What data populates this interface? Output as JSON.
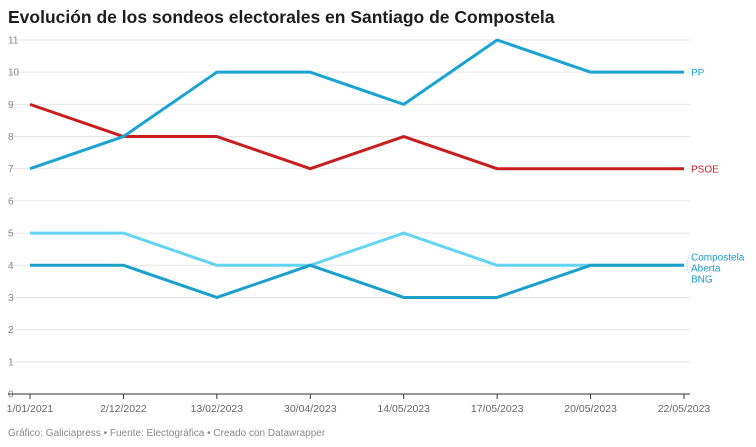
{
  "chart_data": {
    "type": "line",
    "title": "Evolución de los sondeos electorales en Santiago de Compostela",
    "categories": [
      "1/01/2021",
      "2/12/2022",
      "13/02/2023",
      "30/04/2023",
      "14/05/2023",
      "17/05/2023",
      "20/05/2023",
      "22/05/2023"
    ],
    "ylim": [
      0,
      11
    ],
    "yticks": [
      0,
      1,
      2,
      3,
      4,
      5,
      6,
      7,
      8,
      9,
      10,
      11
    ],
    "grid": true,
    "legend": "direct labels at right",
    "series": [
      {
        "name": "PP",
        "color": "#1ba4d1",
        "values": [
          7,
          8,
          10,
          10,
          9,
          11,
          10,
          10
        ]
      },
      {
        "name": "PSOE",
        "color": "#c71f1f",
        "values": [
          9,
          8,
          8,
          7,
          8,
          7,
          7,
          7
        ]
      },
      {
        "name": "Compostela Aberta",
        "color": "#63d4f2",
        "values": [
          5,
          5,
          4,
          4,
          5,
          4,
          4,
          4
        ]
      },
      {
        "name": "BNG",
        "color": "#1ba0cc",
        "values": [
          4,
          4,
          3,
          4,
          3,
          3,
          4,
          4
        ]
      }
    ]
  },
  "footer": "Gráfico: Galiciapress • Fuente: Electográfica • Creado con Datawrapper"
}
